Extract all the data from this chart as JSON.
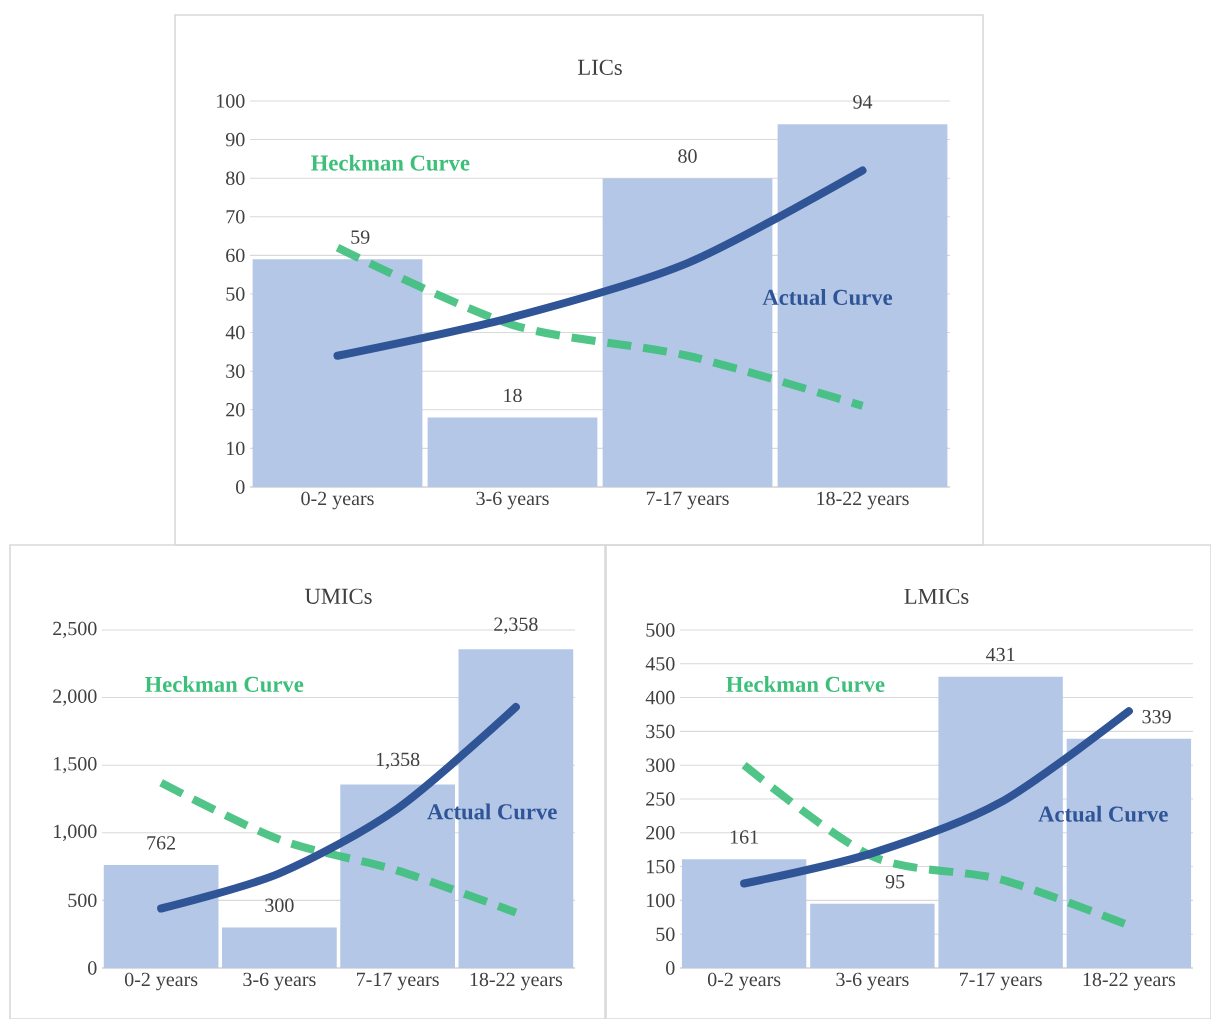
{
  "chart_data": [
    {
      "type": "bar",
      "title": "LICs",
      "categories": [
        "0-2 years",
        "3-6 years",
        "7-17 years",
        "18-22 years"
      ],
      "ylim": [
        0,
        100
      ],
      "yticks": [
        0,
        10,
        20,
        30,
        40,
        50,
        60,
        70,
        80,
        90,
        100
      ],
      "grid": "y",
      "series": [
        {
          "color": "#b4c7e7",
          "values": [
            59,
            18,
            80,
            94
          ],
          "value_labels": [
            "59",
            "18",
            "80",
            "94"
          ]
        },
        {
          "type": "line",
          "name": "Heckman Curve",
          "color": "#3dbf7a",
          "line_style": "dashed",
          "values": [
            62,
            42,
            34,
            21
          ]
        },
        {
          "type": "line",
          "name": "Actual Curve",
          "color": "#2f5597",
          "line_style": "solid",
          "values": [
            34,
            44,
            58,
            82
          ]
        }
      ]
    },
    {
      "type": "bar",
      "title": "UMICs",
      "categories": [
        "0-2 years",
        "3-6 years",
        "7-17 years",
        "18-22 years"
      ],
      "ylim": [
        0,
        2500
      ],
      "yticks": [
        0,
        500,
        {
          "value": 1000,
          "label": "1,000"
        },
        {
          "value": 1500,
          "label": "1,500"
        },
        {
          "value": 2000,
          "label": "2,000"
        },
        {
          "value": 2500,
          "label": "2,500"
        }
      ],
      "grid": "y",
      "series": [
        {
          "color": "#b4c7e7",
          "values": [
            762,
            300,
            1358,
            2358
          ],
          "value_labels": [
            "762",
            "300",
            "1,358",
            "2,358"
          ]
        },
        {
          "type": "line",
          "name": "Heckman Curve",
          "color": "#3dbf7a",
          "line_style": "dashed",
          "values": [
            1370,
            950,
            720,
            410
          ]
        },
        {
          "type": "line",
          "name": "Actual Curve",
          "color": "#2f5597",
          "line_style": "solid",
          "values": [
            440,
            700,
            1180,
            1930
          ]
        }
      ]
    },
    {
      "type": "bar",
      "title": "LMICs",
      "categories": [
        "0-2 years",
        "3-6 years",
        "7-17 years",
        "18-22 years"
      ],
      "ylim": [
        0,
        500
      ],
      "yticks": [
        0,
        50,
        100,
        150,
        200,
        250,
        300,
        350,
        400,
        450,
        500
      ],
      "grid": "y",
      "series": [
        {
          "color": "#b4c7e7",
          "values": [
            161,
            95,
            431,
            339
          ],
          "value_labels": [
            "161",
            "95",
            "431",
            "339"
          ]
        },
        {
          "type": "line",
          "name": "Heckman Curve",
          "color": "#3dbf7a",
          "line_style": "dashed",
          "values": [
            300,
            165,
            131,
            63
          ]
        },
        {
          "type": "line",
          "name": "Actual Curve",
          "color": "#2f5597",
          "line_style": "solid",
          "values": [
            125,
            170,
            245,
            380
          ]
        }
      ]
    }
  ]
}
